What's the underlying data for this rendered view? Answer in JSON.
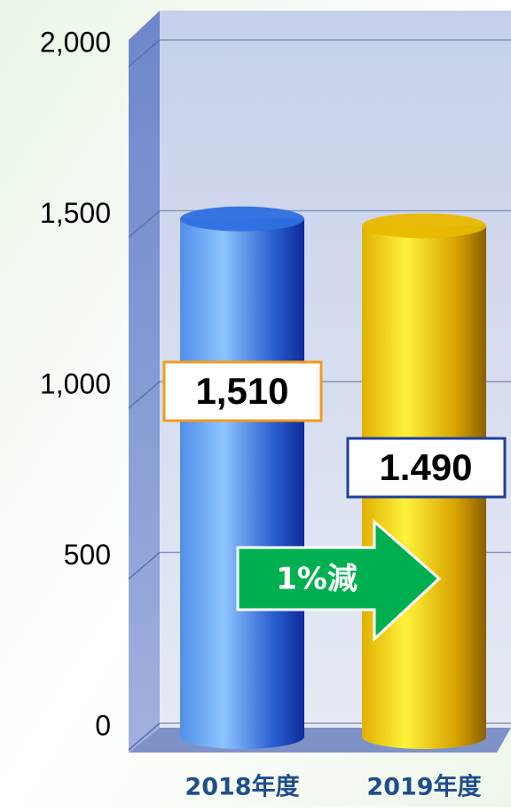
{
  "chart_data": {
    "type": "bar",
    "categories": [
      "2018年度",
      "2019年度"
    ],
    "values": [
      1510,
      1490
    ],
    "value_labels": [
      "1,510",
      "1.490"
    ],
    "colors": [
      "#2f6fe0",
      "#e8b800"
    ],
    "label_border_colors": [
      "#f39a1e",
      "#1f3f9c"
    ],
    "annotation": "1%減",
    "ylim": [
      0,
      2000
    ],
    "yticks": [
      0,
      500,
      {
        "value": 1000,
        "label": "1,000"
      },
      {
        "value": 1500,
        "label": "1,500"
      },
      {
        "value": 2000,
        "label": "2,000"
      }
    ],
    "grid": true
  }
}
